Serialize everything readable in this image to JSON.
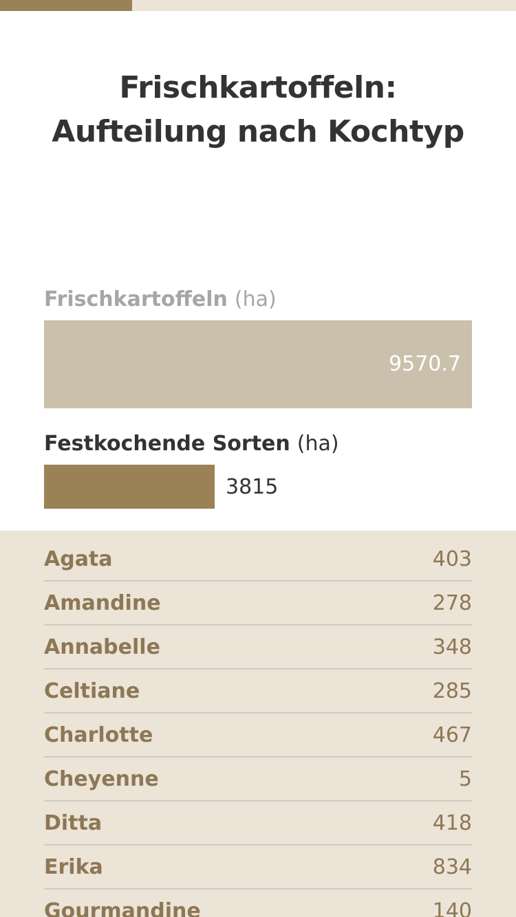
{
  "progress": {
    "fraction": 0.256,
    "color": "#9a8256"
  },
  "title": {
    "line1": "Frischkartoffeln:",
    "line2": "Aufteilung nach Kochtyp"
  },
  "chart_data": {
    "type": "bar",
    "title": "Frischkartoffeln: Aufteilung nach Kochtyp",
    "orientation": "horizontal",
    "series": [
      {
        "name": "Frischkartoffeln",
        "unit": "(ha)",
        "value": 9570.7,
        "value_label": "9570.7",
        "color": "#cbc0ac"
      },
      {
        "name": "Festkochende Sorten",
        "unit": "(ha)",
        "value": 3815,
        "value_label": "3815",
        "color": "#9a8256"
      }
    ],
    "xlim": [
      0,
      9570.7
    ]
  },
  "varieties": [
    {
      "name": "Agata",
      "value": "403"
    },
    {
      "name": "Amandine",
      "value": "278"
    },
    {
      "name": "Annabelle",
      "value": "348"
    },
    {
      "name": "Celtiane",
      "value": "285"
    },
    {
      "name": "Charlotte",
      "value": "467"
    },
    {
      "name": "Cheyenne",
      "value": "5"
    },
    {
      "name": "Ditta",
      "value": "418"
    },
    {
      "name": "Erika",
      "value": "834"
    },
    {
      "name": "Gourmandine",
      "value": "140"
    }
  ]
}
